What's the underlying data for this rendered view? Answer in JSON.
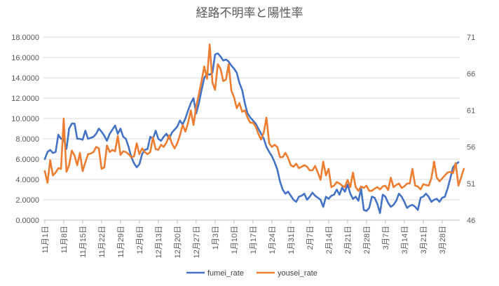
{
  "chart_data": {
    "type": "line",
    "title": "経路不明率と陽性率",
    "x_labels": [
      "11月1日",
      "11月8日",
      "11月15日",
      "11月22日",
      "11月29日",
      "12月6日",
      "12月13日",
      "12月20日",
      "12月27日",
      "1月3日",
      "1月10日",
      "1月17日",
      "1月24日",
      "1月31日",
      "2月7日",
      "2月14日",
      "2月21日",
      "2月28日",
      "3月7日",
      "3月14日",
      "3月21日",
      "3月28日"
    ],
    "y_left_ticks": [
      "0.0000",
      "2.0000",
      "4.0000",
      "6.0000",
      "8.0000",
      "10.0000",
      "12.0000",
      "14.0000",
      "16.0000",
      "18.0000"
    ],
    "y_left_range": [
      0,
      18
    ],
    "y_right_ticks": [
      "46",
      "51",
      "56",
      "61",
      "66",
      "71"
    ],
    "y_right_range": [
      46,
      71
    ],
    "legend_position": "bottom",
    "grid": true,
    "series": [
      {
        "name": "fumei_rate",
        "axis": "left",
        "color": "#4472C4",
        "values": [
          6.0,
          6.7,
          6.9,
          6.6,
          6.7,
          8.4,
          8.0,
          8.0,
          7.0,
          9.0,
          9.5,
          9.5,
          8.0,
          8.0,
          7.9,
          8.8,
          8.0,
          8.1,
          8.2,
          8.5,
          9.0,
          8.7,
          8.3,
          7.8,
          8.5,
          8.9,
          9.3,
          8.5,
          9.0,
          8.2,
          8.0,
          7.2,
          6.2,
          5.6,
          5.2,
          5.5,
          6.5,
          6.9,
          7.0,
          8.2,
          8.0,
          8.8,
          8.0,
          7.8,
          8.2,
          8.5,
          8.0,
          8.6,
          8.9,
          9.2,
          9.8,
          9.4,
          10.0,
          10.8,
          11.5,
          12.0,
          10.5,
          11.5,
          12.8,
          14.0,
          14.4,
          14.3,
          14.5,
          16.3,
          16.4,
          16.1,
          15.7,
          15.8,
          15.6,
          15.2,
          14.9,
          14.5,
          13.5,
          12.8,
          11.5,
          10.5,
          10.1,
          9.8,
          9.5,
          9.0,
          8.5,
          8.0,
          7.2,
          6.7,
          6.3,
          5.7,
          5.0,
          3.8,
          3.0,
          2.6,
          2.8,
          2.4,
          2.0,
          1.8,
          2.3,
          2.4,
          2.6,
          2.0,
          2.3,
          2.7,
          2.4,
          2.2,
          2.0,
          1.3,
          2.3,
          2.1,
          2.4,
          2.5,
          3.0,
          2.5,
          3.2,
          2.8,
          3.5,
          2.6,
          2.1,
          2.3,
          1.9,
          3.1,
          1.0,
          0.9,
          1.2,
          2.3,
          2.2,
          1.6,
          0.7,
          2.5,
          2.3,
          1.7,
          1.3,
          1.5,
          1.9,
          2.6,
          2.3,
          1.8,
          1.2,
          1.4,
          1.5,
          1.3,
          1.0,
          2.2,
          2.3,
          2.6,
          2.3,
          1.8,
          2.0,
          2.1,
          1.8,
          2.2,
          2.3,
          3.1,
          4.1,
          5.2,
          5.5,
          5.7
        ]
      },
      {
        "name": "yousei_rate",
        "axis": "right",
        "color": "#ED7D31",
        "values": [
          52.7,
          51.1,
          54.2,
          52.1,
          52.5,
          53.1,
          53.0,
          59.9,
          52.6,
          53.5,
          55.5,
          54.8,
          53.5,
          55.2,
          52.7,
          53.9,
          55.0,
          55.1,
          55.3,
          56.0,
          55.8,
          53.0,
          53.2,
          56.2,
          55.3,
          55.6,
          55.4,
          57.5,
          54.9,
          55.4,
          55.3,
          55.0,
          54.6,
          54.7,
          56.5,
          55.0,
          55.8,
          55.3,
          55.0,
          55.3,
          57.3,
          55.7,
          55.6,
          56.3,
          56.0,
          56.6,
          57.6,
          56.5,
          55.8,
          56.5,
          57.6,
          59.0,
          58.1,
          59.3,
          61.0,
          59.0,
          61.5,
          63.2,
          65.0,
          67.0,
          65.3,
          70.0,
          64.8,
          63.8,
          67.3,
          66.7,
          65.0,
          65.2,
          67.3,
          63.7,
          62.8,
          61.3,
          62.0,
          60.8,
          61.0,
          60.0,
          59.3,
          59.3,
          58.8,
          57.8,
          57.0,
          58.0,
          60.0,
          56.5,
          56.0,
          56.3,
          56.0,
          54.6,
          54.6,
          55.2,
          54.5,
          53.5,
          53.3,
          53.7,
          53.1,
          53.3,
          53.5,
          53.3,
          52.8,
          52.8,
          53.4,
          52.5,
          51.5,
          54.0,
          52.1,
          53.0,
          50.5,
          50.7,
          51.2,
          51.0,
          50.7,
          50.5,
          51.5,
          50.5,
          52.5,
          50.5,
          50.0,
          50.6,
          50.4,
          50.7,
          50.0,
          50.0,
          50.3,
          50.5,
          50.2,
          50.6,
          50.7,
          50.1,
          51.8,
          50.5,
          50.8,
          51.0,
          50.4,
          50.6,
          51.0,
          51.0,
          53.0,
          50.7,
          50.6,
          50.2,
          50.9,
          50.8,
          50.7,
          51.7,
          54.0,
          51.8,
          51.3,
          51.7,
          52.1,
          52.5,
          52.6,
          52.4,
          53.8,
          50.7,
          51.8,
          53.0
        ]
      }
    ]
  }
}
